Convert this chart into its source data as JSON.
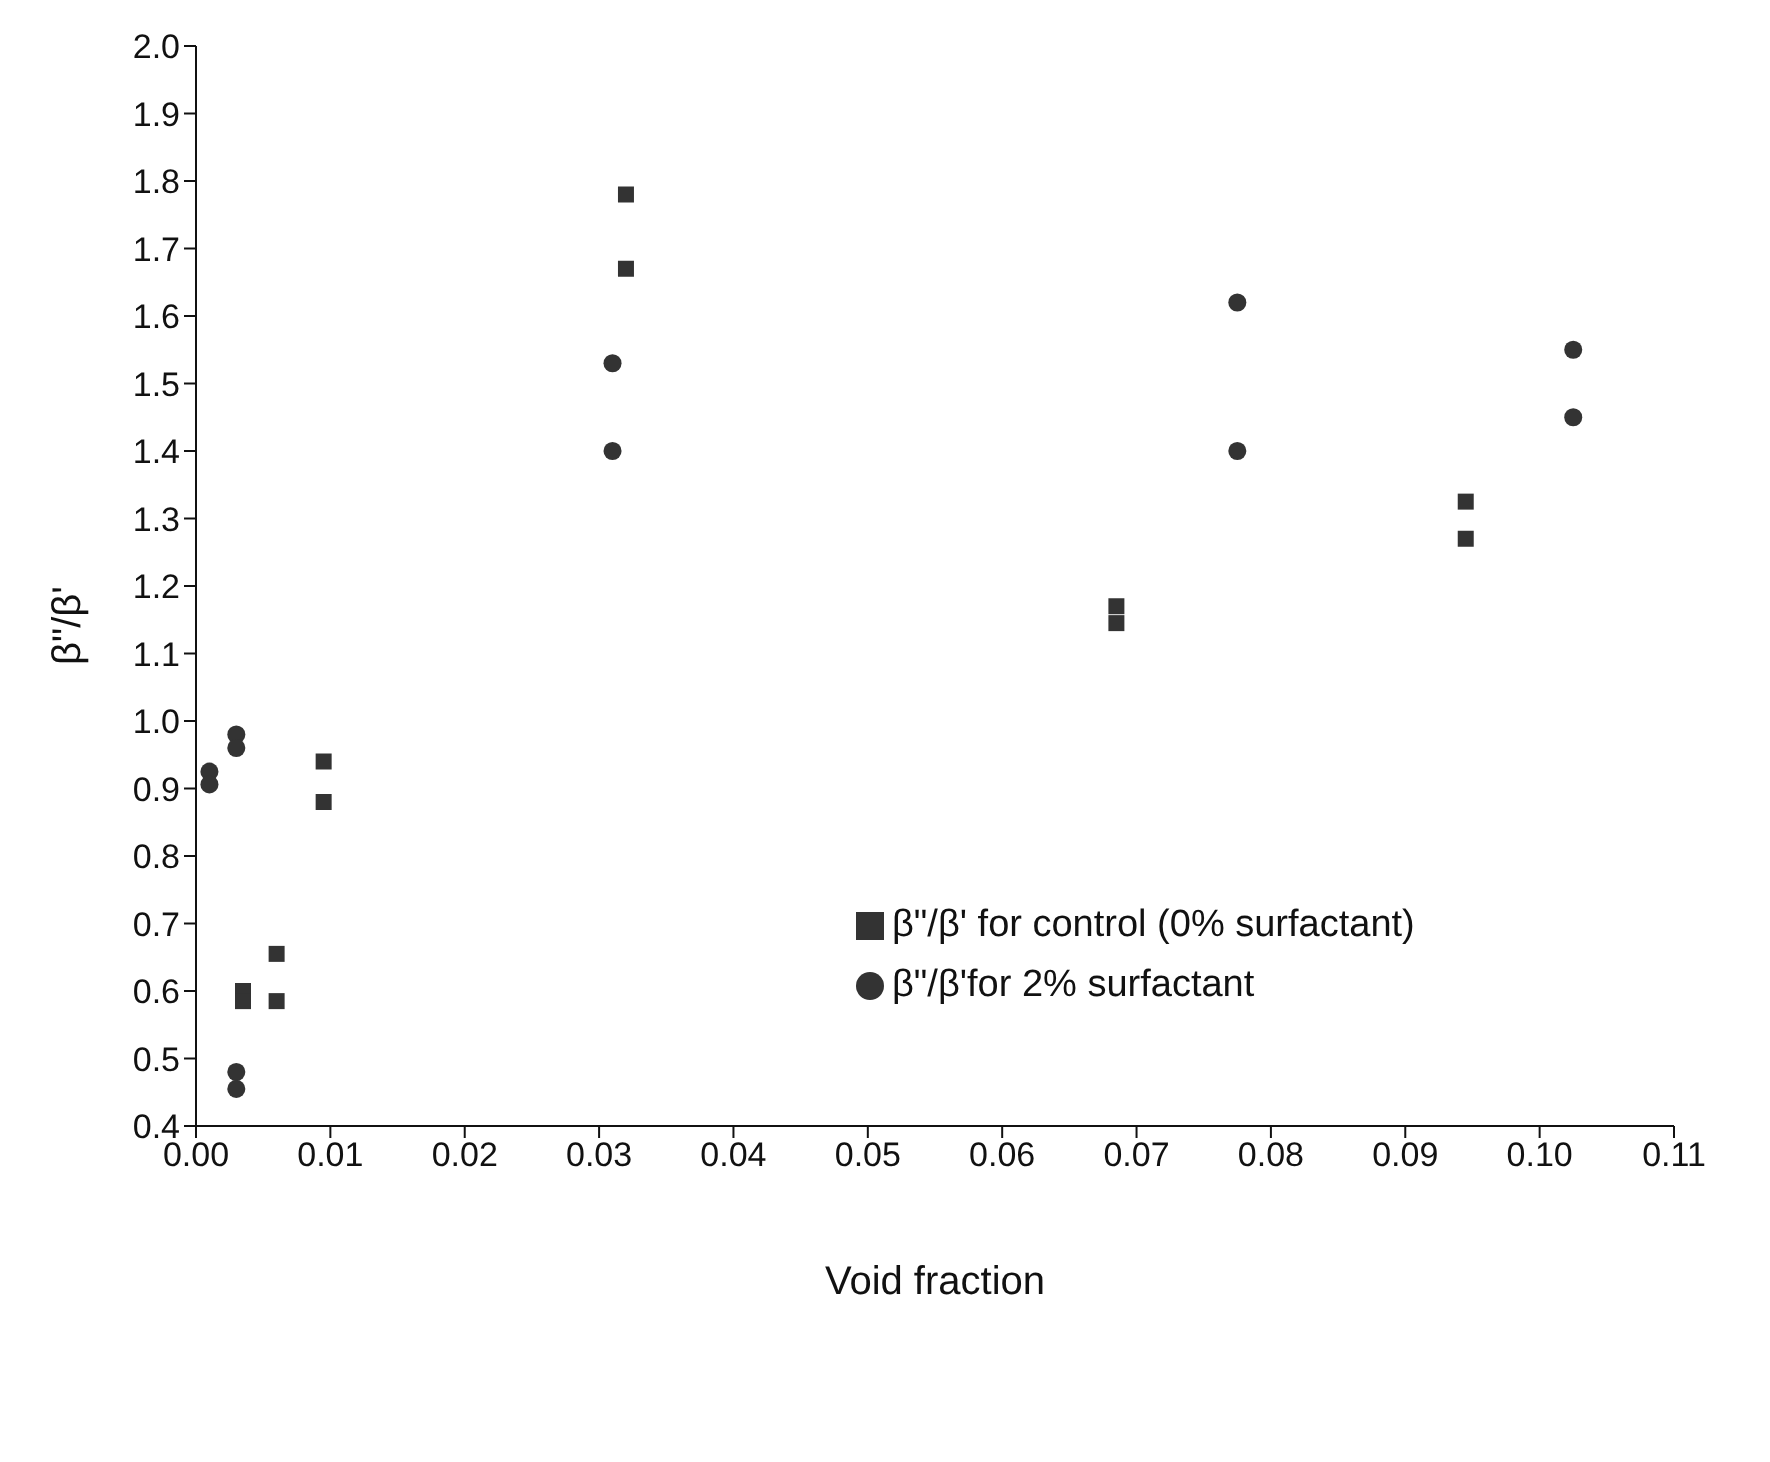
{
  "chart_data": {
    "type": "scatter",
    "xlabel": "Void fraction",
    "ylabel": "β\"/β'",
    "xlim": [
      0,
      0.11
    ],
    "ylim": [
      0.4,
      2.0
    ],
    "xticks": [
      {
        "value": 0,
        "label": "0.00"
      },
      {
        "value": 0.01,
        "label": "0.01"
      },
      {
        "value": 0.02,
        "label": "0.02"
      },
      {
        "value": 0.03,
        "label": "0.03"
      },
      {
        "value": 0.04,
        "label": "0.04"
      },
      {
        "value": 0.05,
        "label": "0.05"
      },
      {
        "value": 0.06,
        "label": "0.06"
      },
      {
        "value": 0.07,
        "label": "0.07"
      },
      {
        "value": 0.08,
        "label": "0.08"
      },
      {
        "value": 0.09,
        "label": "0.09"
      },
      {
        "value": 0.1,
        "label": "0.10"
      },
      {
        "value": 0.11,
        "label": "0.11"
      }
    ],
    "yticks": [
      0.4,
      0.5,
      0.6,
      0.7,
      0.8,
      0.9,
      {
        "value": 1.0,
        "label": "1.0"
      },
      1.1,
      1.2,
      1.3,
      1.4,
      1.5,
      1.6,
      1.7,
      1.8,
      1.9,
      {
        "value": 2.0,
        "label": "2.0"
      }
    ],
    "grid": false,
    "legend": "right",
    "series": [
      {
        "name": "β\"/β' for control (0% surfactant)",
        "color": "#333333",
        "marker": "square",
        "x": [
          0.032,
          0.032,
          0.0095,
          0.0095,
          0.0035,
          0.0035,
          0.006,
          0.006,
          0.0685,
          0.0685,
          0.0945,
          0.0945
        ],
        "values": [
          1.78,
          1.67,
          0.94,
          0.88,
          0.6,
          0.585,
          0.655,
          0.585,
          1.17,
          1.145,
          1.325,
          1.27
        ]
      },
      {
        "name": "β\"/β'for 2% surfactant",
        "color": "#333333",
        "marker": "circle",
        "x": [
          0.031,
          0.031,
          0.0775,
          0.0775,
          0.1025,
          0.1025,
          0.001,
          0.001,
          0.003,
          0.003,
          0.003,
          0.003
        ],
        "values": [
          1.53,
          1.4,
          1.62,
          1.4,
          1.55,
          1.45,
          0.925,
          0.906,
          0.98,
          0.96,
          0.48,
          0.455
        ]
      }
    ]
  }
}
